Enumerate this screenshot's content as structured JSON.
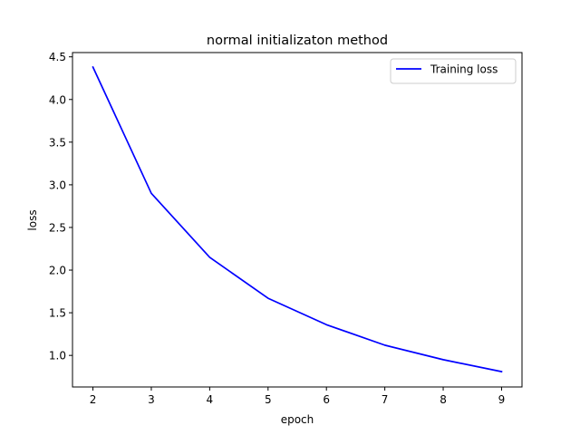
{
  "chart_data": {
    "type": "line",
    "title": "normal initializaton method",
    "xlabel": "epoch",
    "ylabel": "loss",
    "x": [
      2,
      3,
      4,
      5,
      6,
      7,
      8,
      9
    ],
    "series": [
      {
        "name": "Training loss",
        "color": "#0000ff",
        "values": [
          4.38,
          2.9,
          2.15,
          1.67,
          1.36,
          1.12,
          0.95,
          0.81
        ]
      }
    ],
    "xlim": [
      1.65,
      9.35
    ],
    "ylim": [
      0.63,
      4.55
    ],
    "xticks": [
      2,
      3,
      4,
      5,
      6,
      7,
      8,
      9
    ],
    "yticks": [
      1.0,
      1.5,
      2.0,
      2.5,
      3.0,
      3.5,
      4.0,
      4.5
    ],
    "ytick_labels": [
      "1.0",
      "1.5",
      "2.0",
      "2.5",
      "3.0",
      "3.5",
      "4.0",
      "4.5"
    ],
    "grid": false,
    "legend": "top-right"
  }
}
